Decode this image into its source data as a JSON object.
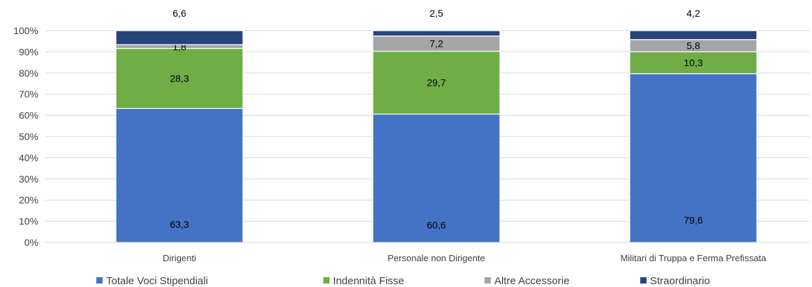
{
  "chart_data": {
    "type": "bar",
    "stacked": true,
    "percent_stacked": true,
    "categories": [
      "Dirigenti",
      "Personale non Dirigente",
      "Militari di Truppa e Ferma Prefissata"
    ],
    "series": [
      {
        "name": "Totale Voci Stipendiali",
        "values": [
          63.3,
          60.6,
          79.6
        ],
        "labels": [
          "63,3",
          "60,6",
          "79,6"
        ],
        "color": "#4472C4"
      },
      {
        "name": "Indennità Fisse",
        "values": [
          28.3,
          29.7,
          10.3
        ],
        "labels": [
          "28,3",
          "29,7",
          "10,3"
        ],
        "color": "#70AD47"
      },
      {
        "name": "Altre Accessorie",
        "values": [
          1.8,
          7.2,
          5.8
        ],
        "labels": [
          "1,8",
          "7,2",
          "5,8"
        ],
        "color": "#A5A5A5"
      },
      {
        "name": "Straordinario",
        "values": [
          6.6,
          2.5,
          4.2
        ],
        "labels": [
          "6,6",
          "2,5",
          "4,2"
        ],
        "color": "#264478"
      }
    ],
    "yticks": [
      "0%",
      "10%",
      "20%",
      "30%",
      "40%",
      "50%",
      "60%",
      "70%",
      "80%",
      "90%",
      "100%"
    ],
    "ylim": [
      0,
      100
    ],
    "grid": true,
    "legend_position": "bottom",
    "title": "",
    "xlabel": "",
    "ylabel": ""
  }
}
